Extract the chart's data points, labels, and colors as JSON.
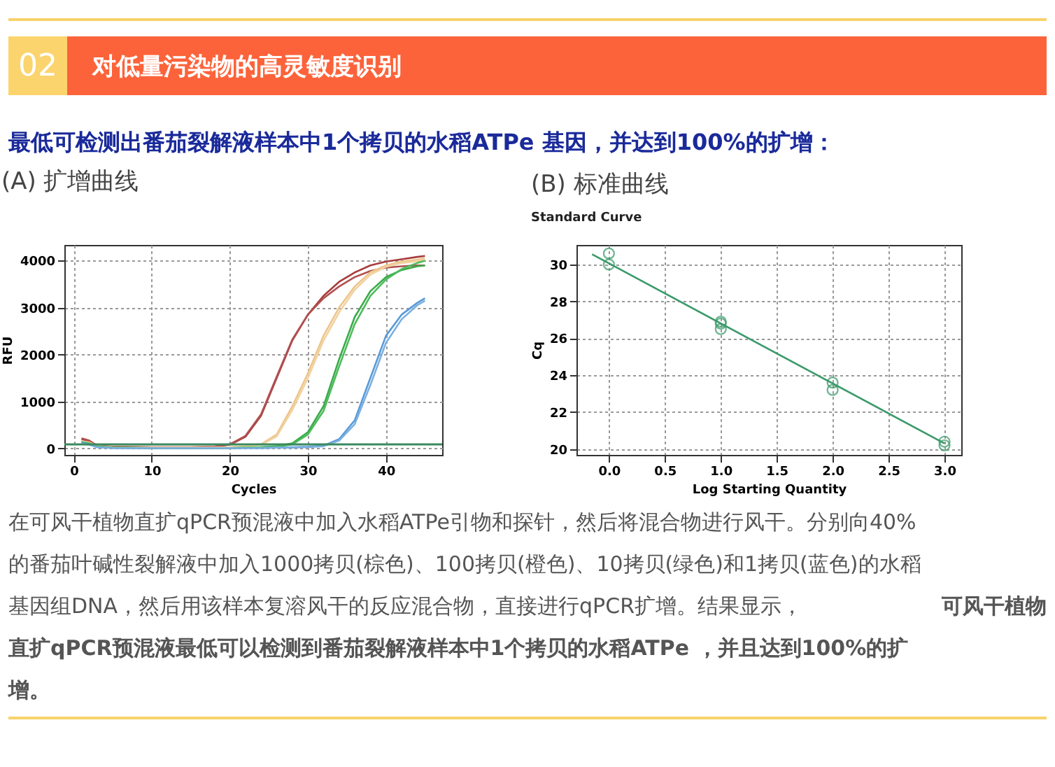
{
  "chart_data": [
    {
      "type": "other",
      "title": "对低量污染物的高灵敏度识别",
      "annotations": [
        "02",
        "最低可检测出番茄裂解液样本中1个拷贝的水稻ATPe 基因，并达到100%的扩增："
      ]
    },
    {
      "type": "line",
      "title": "(A) 扩增曲线",
      "xlabel": "Cycles",
      "ylabel": "RFU",
      "grid": true,
      "line_style": "solid",
      "xlim": [
        -1.2,
        47.2
      ],
      "xticks": [
        0,
        10,
        20,
        30,
        40
      ],
      "ylim": [
        -135,
        4335
      ],
      "yticks": [
        0,
        1000,
        2000,
        3000,
        4000
      ],
      "x": [
        1,
        2,
        3,
        5,
        10,
        15,
        18,
        20,
        22,
        24,
        26,
        28,
        30,
        32,
        34,
        36,
        38,
        40,
        42,
        44,
        45
      ],
      "series": [
        {
          "color": "#a83c3c",
          "values": [
            200,
            150,
            60,
            40,
            30,
            30,
            40,
            80,
            250,
            700,
            1500,
            2300,
            2850,
            3250,
            3550,
            3750,
            3900,
            3980,
            4030,
            4080,
            4100
          ]
        },
        {
          "color": "#b05050",
          "values": [
            220,
            170,
            60,
            40,
            30,
            30,
            40,
            90,
            270,
            730,
            1530,
            2320,
            2850,
            3200,
            3450,
            3650,
            3780,
            3850,
            3880,
            3900,
            3900
          ]
        },
        {
          "color": "#eec58a",
          "values": [
            150,
            120,
            50,
            30,
            20,
            20,
            20,
            30,
            50,
            90,
            300,
            900,
            1600,
            2400,
            3000,
            3450,
            3750,
            3900,
            3980,
            4020,
            4050
          ]
        },
        {
          "color": "#f0d2a0",
          "values": [
            160,
            130,
            50,
            30,
            20,
            20,
            20,
            30,
            50,
            80,
            260,
            820,
            1500,
            2300,
            2900,
            3380,
            3700,
            3870,
            3950,
            3990,
            4000
          ]
        },
        {
          "color": "#3aaa4a",
          "values": [
            130,
            100,
            40,
            20,
            10,
            10,
            10,
            10,
            20,
            30,
            50,
            110,
            350,
            900,
            1900,
            2800,
            3350,
            3650,
            3800,
            3880,
            3900
          ]
        },
        {
          "color": "#4cbb5a",
          "values": [
            140,
            110,
            40,
            20,
            10,
            10,
            10,
            10,
            20,
            30,
            40,
            90,
            300,
            800,
            1750,
            2650,
            3250,
            3600,
            3820,
            3950,
            4000
          ]
        },
        {
          "color": "#5a9ad8",
          "values": [
            120,
            90,
            30,
            10,
            10,
            10,
            10,
            10,
            10,
            10,
            20,
            30,
            40,
            60,
            200,
            600,
            1500,
            2400,
            2850,
            3100,
            3200
          ]
        },
        {
          "color": "#7ab0e0",
          "values": [
            110,
            80,
            30,
            10,
            10,
            10,
            10,
            10,
            10,
            10,
            20,
            20,
            30,
            50,
            170,
            520,
            1350,
            2250,
            2750,
            3050,
            3150
          ]
        }
      ],
      "ref_lines": [
        {
          "axis": "y",
          "value": 90,
          "color": "#3a8a60"
        }
      ]
    },
    {
      "type": "scatter",
      "title": "(B) 标准曲线",
      "subtitle": "Standard Curve",
      "xlabel": "Log Starting Quantity",
      "ylabel": "Cq",
      "grid": true,
      "xlim": [
        -0.29,
        3.15
      ],
      "xticks": [
        {
          "value": 0,
          "label": "0.0"
        },
        0.5,
        {
          "value": 1,
          "label": "1.0"
        },
        1.5,
        {
          "value": 2,
          "label": "2.0"
        },
        2.5,
        {
          "value": 3,
          "label": "3.0"
        }
      ],
      "ylim": [
        19.68,
        31.06
      ],
      "yticks": [
        20,
        22,
        24,
        26,
        28,
        30
      ],
      "series": [
        {
          "type": "line",
          "color": "#3a9a6a",
          "x": [
            -0.15,
            3.0
          ],
          "values": [
            30.55,
            20.3
          ],
          "line_style": "solid"
        },
        {
          "type": "scatter",
          "color": "#3a9a6a",
          "marker": "circle",
          "x": [
            0,
            0,
            1,
            1,
            1,
            2,
            2,
            3,
            3
          ],
          "values": [
            30.6,
            30.0,
            26.9,
            26.8,
            26.5,
            23.6,
            23.2,
            20.4,
            20.2
          ]
        }
      ]
    },
    {
      "type": "other",
      "annotations": [
        "在可风干植物直扩qPCR预混液中加入水稻ATPe引物和探针，然后将混合物进行风干。分别向40%",
        "的番茄叶碱性裂解液中加入1000拷贝(棕色)、100拷贝(橙色)、10拷贝(绿色)和1拷贝(蓝色)的水稻",
        "基因组DNA，然后用该样本复溶风干的反应混合物，直接进行qPCR扩增。结果显示，",
        "可风干植物",
        "直扩qPCR预混液最低可以检测到番茄裂解液样本中1个拷贝的水稻ATPe ，并且达到100%的扩",
        "增。"
      ]
    }
  ]
}
